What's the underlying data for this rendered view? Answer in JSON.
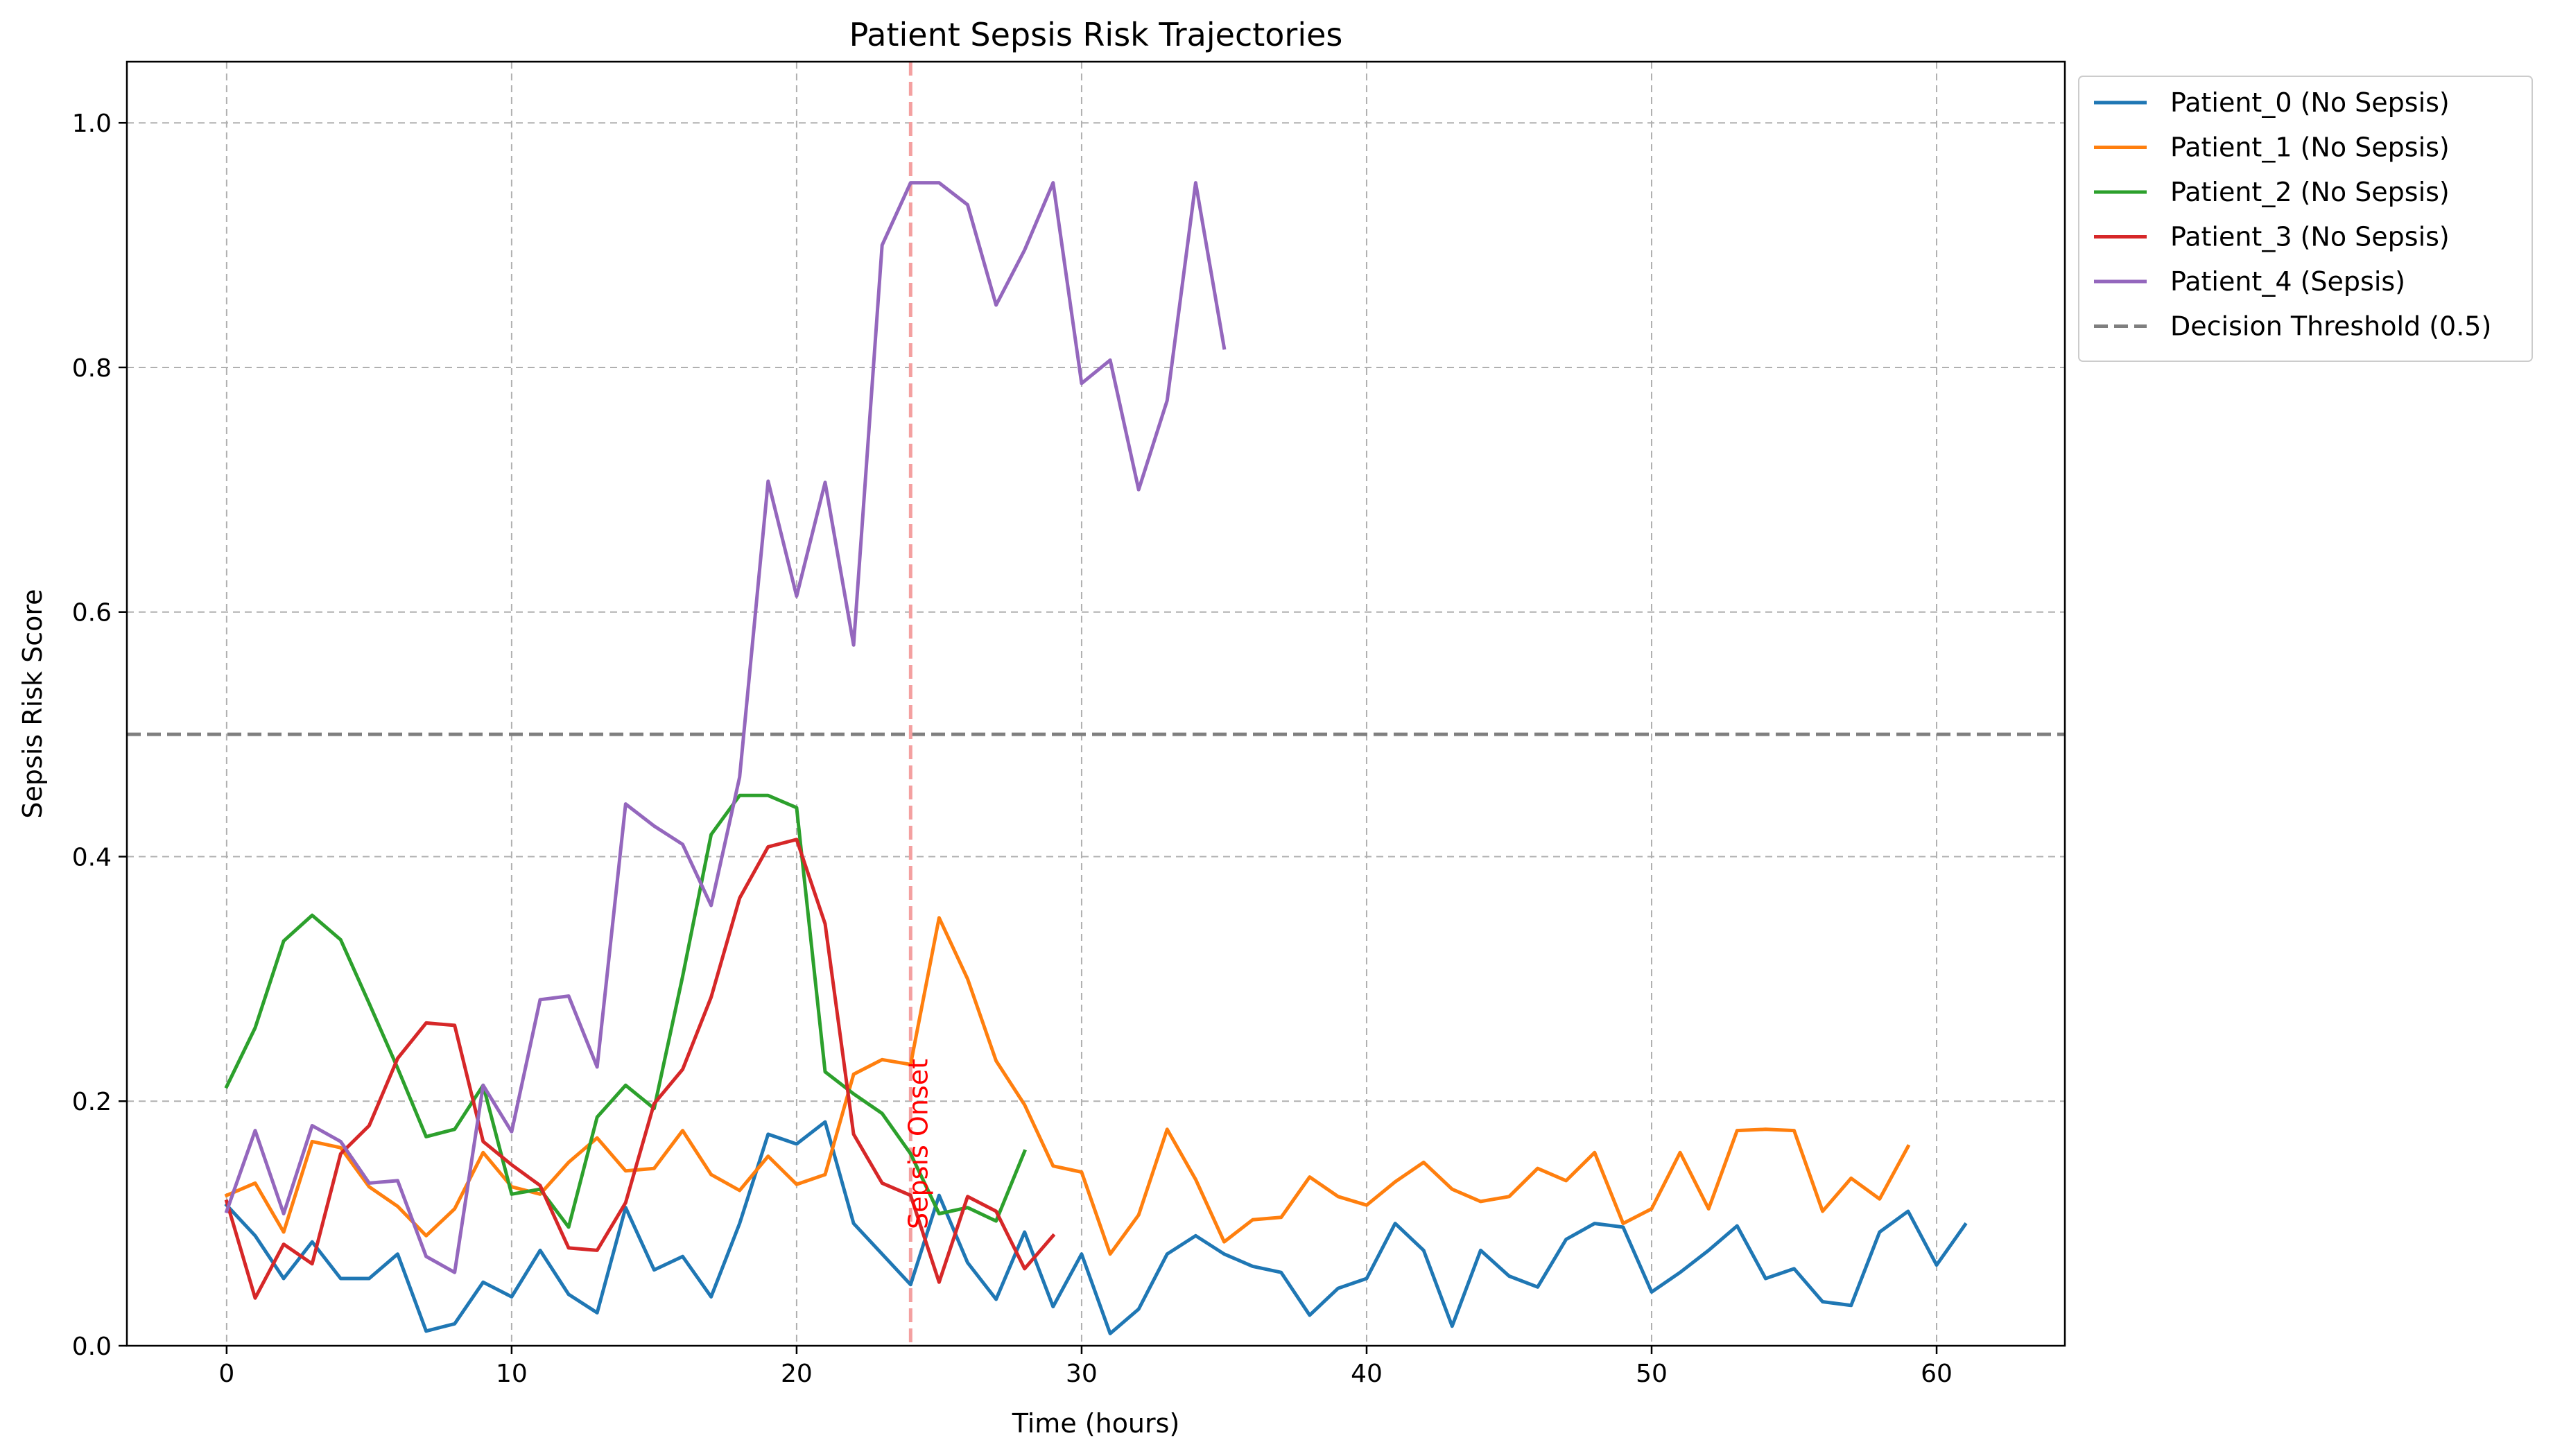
{
  "chart_data": {
    "type": "line",
    "title": "Patient Sepsis Risk Trajectories",
    "xlabel": "Time (hours)",
    "ylabel": "Sepsis Risk Score",
    "xlim": [
      -3.5,
      64.5
    ],
    "ylim": [
      0,
      1.05
    ],
    "xticks": [
      0,
      10,
      20,
      30,
      40,
      50,
      60
    ],
    "yticks": [
      0.0,
      0.2,
      0.4,
      0.6,
      0.8,
      1.0
    ],
    "xtick_labels": [
      "0",
      "10",
      "20",
      "30",
      "40",
      "50",
      "60"
    ],
    "ytick_labels": [
      "0.0",
      "0.2",
      "0.4",
      "0.6",
      "0.8",
      "1.0"
    ],
    "grid": true,
    "legend_position": "outside-top-right",
    "series": [
      {
        "name": "Patient_0 (No Sepsis)",
        "color": "#1f77b4",
        "values": [
          0.115,
          0.09,
          0.055,
          0.085,
          0.055,
          0.055,
          0.075,
          0.012,
          0.018,
          0.052,
          0.04,
          0.078,
          0.042,
          0.027,
          0.113,
          0.062,
          0.073,
          0.04,
          0.1,
          0.173,
          0.165,
          0.183,
          0.1,
          0.075,
          0.05,
          0.123,
          0.068,
          0.038,
          0.093,
          0.032,
          0.075,
          0.01,
          0.03,
          0.075,
          0.09,
          0.075,
          0.065,
          0.06,
          0.025,
          0.047,
          0.055,
          0.1,
          0.078,
          0.016,
          0.078,
          0.057,
          0.048,
          0.087,
          0.1,
          0.097,
          0.044,
          0.06,
          0.078,
          0.098,
          0.055,
          0.063,
          0.036,
          0.033,
          0.093,
          0.11,
          0.066,
          0.099
        ]
      },
      {
        "name": "Patient_1 (No Sepsis)",
        "color": "#ff7f0e",
        "values": [
          0.123,
          0.133,
          0.093,
          0.167,
          0.162,
          0.13,
          0.114,
          0.09,
          0.112,
          0.158,
          0.13,
          0.124,
          0.15,
          0.17,
          0.143,
          0.145,
          0.176,
          0.14,
          0.127,
          0.155,
          0.132,
          0.14,
          0.222,
          0.234,
          0.23,
          0.35,
          0.3,
          0.233,
          0.197,
          0.147,
          0.142,
          0.075,
          0.107,
          0.177,
          0.136,
          0.085,
          0.103,
          0.105,
          0.138,
          0.122,
          0.115,
          0.134,
          0.15,
          0.128,
          0.118,
          0.122,
          0.145,
          0.135,
          0.158,
          0.1,
          0.112,
          0.158,
          0.112,
          0.176,
          0.177,
          0.176,
          0.11,
          0.137,
          0.12,
          0.163
        ]
      },
      {
        "name": "Patient_2 (No Sepsis)",
        "color": "#2ca02c",
        "values": [
          0.212,
          0.26,
          0.331,
          0.352,
          0.332,
          0.28,
          0.227,
          0.171,
          0.177,
          0.213,
          0.124,
          0.128,
          0.097,
          0.187,
          0.213,
          0.194,
          0.302,
          0.418,
          0.45,
          0.45,
          0.44,
          0.224,
          0.206,
          0.19,
          0.157,
          0.108,
          0.113,
          0.102,
          0.159
        ]
      },
      {
        "name": "Patient_3 (No Sepsis)",
        "color": "#d62728",
        "values": [
          0.118,
          0.039,
          0.083,
          0.067,
          0.157,
          0.18,
          0.235,
          0.264,
          0.262,
          0.167,
          0.148,
          0.131,
          0.08,
          0.078,
          0.117,
          0.198,
          0.226,
          0.285,
          0.366,
          0.408,
          0.414,
          0.345,
          0.173,
          0.133,
          0.123,
          0.052,
          0.122,
          0.11,
          0.063,
          0.09
        ]
      },
      {
        "name": "Patient_4 (Sepsis)",
        "color": "#9467bd",
        "values": [
          0.11,
          0.176,
          0.108,
          0.18,
          0.167,
          0.133,
          0.135,
          0.073,
          0.06,
          0.213,
          0.175,
          0.283,
          0.286,
          0.228,
          0.443,
          0.425,
          0.41,
          0.36,
          0.465,
          0.707,
          0.613,
          0.706,
          0.573,
          0.9,
          0.951,
          0.951,
          0.933,
          0.851,
          0.896,
          0.951,
          0.787,
          0.806,
          0.7,
          0.773,
          0.951,
          0.816
        ]
      }
    ],
    "threshold": {
      "name": "Decision Threshold (0.5)",
      "value": 0.5,
      "color": "#7f7f7f",
      "style": "dashed"
    },
    "annotations": [
      {
        "text": "Sepsis Onset",
        "x": 24,
        "color": "#ff0000",
        "line_color": "#f4a0a0"
      }
    ]
  }
}
